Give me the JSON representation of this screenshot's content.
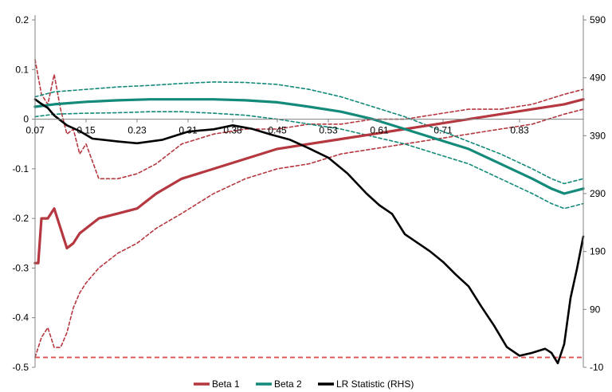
{
  "chart_data": {
    "type": "line",
    "title": "",
    "xlabel": "",
    "ylabel": "",
    "x_tick_labels": [
      "0.07",
      "0.15",
      "0.23",
      "0.31",
      "0.38",
      "0.45",
      "0.53",
      "0.61",
      "0.71",
      "0.83"
    ],
    "x_tick_positions": [
      0.07,
      0.15,
      0.23,
      0.31,
      0.38,
      0.45,
      0.53,
      0.61,
      0.71,
      0.83
    ],
    "xlim": [
      0.07,
      0.93
    ],
    "ylim_left": [
      -0.5,
      0.2
    ],
    "ylim_right": [
      -10,
      590
    ],
    "y_left_ticks": [
      0.2,
      0.1,
      0,
      -0.1,
      -0.2,
      -0.3,
      -0.4,
      -0.5
    ],
    "y_left_tick_labels": [
      "0.2",
      "0.1",
      "0",
      "-0.1",
      "-0.2",
      "-0.3",
      "-0.4",
      "-0.5"
    ],
    "y_right_ticks": [
      590,
      490,
      390,
      290,
      190,
      90,
      -10
    ],
    "y_right_tick_labels": [
      "590",
      "490",
      "390",
      "290",
      "190",
      "90",
      "-10"
    ],
    "legend_position": "bottom",
    "colors": {
      "beta1": "#b5373f",
      "beta2": "#138a7a",
      "lr": "#000000",
      "critical": "#e05050"
    },
    "series": [
      {
        "name": "Beta 1",
        "axis": "left",
        "style": "solid",
        "color": "#b5373f",
        "x": [
          0.07,
          0.075,
          0.08,
          0.09,
          0.1,
          0.11,
          0.12,
          0.13,
          0.14,
          0.15,
          0.17,
          0.2,
          0.23,
          0.26,
          0.3,
          0.35,
          0.4,
          0.45,
          0.5,
          0.55,
          0.6,
          0.65,
          0.7,
          0.75,
          0.8,
          0.85,
          0.9,
          0.93
        ],
        "y": [
          -0.29,
          -0.29,
          -0.2,
          -0.2,
          -0.18,
          -0.22,
          -0.26,
          -0.25,
          -0.23,
          -0.22,
          -0.2,
          -0.19,
          -0.18,
          -0.15,
          -0.12,
          -0.1,
          -0.08,
          -0.06,
          -0.05,
          -0.04,
          -0.03,
          -0.02,
          -0.01,
          0.0,
          0.01,
          0.02,
          0.03,
          0.04
        ]
      },
      {
        "name": "Beta 1 upper band",
        "axis": "left",
        "style": "dashed",
        "color": "#b5373f",
        "x": [
          0.07,
          0.08,
          0.09,
          0.1,
          0.11,
          0.12,
          0.13,
          0.14,
          0.15,
          0.17,
          0.2,
          0.23,
          0.26,
          0.3,
          0.35,
          0.4,
          0.45,
          0.5,
          0.55,
          0.6,
          0.65,
          0.7,
          0.75,
          0.8,
          0.85,
          0.9,
          0.93
        ],
        "y": [
          0.12,
          0.05,
          0.03,
          0.09,
          0.02,
          -0.03,
          -0.02,
          -0.07,
          -0.05,
          -0.12,
          -0.12,
          -0.11,
          -0.09,
          -0.05,
          -0.03,
          -0.02,
          -0.02,
          -0.01,
          -0.01,
          0.0,
          0.0,
          0.01,
          0.02,
          0.02,
          0.03,
          0.05,
          0.06
        ]
      },
      {
        "name": "Beta 1 lower band",
        "axis": "left",
        "style": "dashed",
        "color": "#b5373f",
        "x": [
          0.07,
          0.08,
          0.09,
          0.1,
          0.11,
          0.12,
          0.13,
          0.14,
          0.15,
          0.17,
          0.2,
          0.23,
          0.26,
          0.3,
          0.35,
          0.4,
          0.45,
          0.5,
          0.55,
          0.6,
          0.65,
          0.7,
          0.75,
          0.8,
          0.85,
          0.9,
          0.93
        ],
        "y": [
          -0.48,
          -0.44,
          -0.42,
          -0.46,
          -0.46,
          -0.43,
          -0.38,
          -0.35,
          -0.33,
          -0.3,
          -0.27,
          -0.25,
          -0.22,
          -0.19,
          -0.15,
          -0.12,
          -0.1,
          -0.09,
          -0.07,
          -0.06,
          -0.05,
          -0.04,
          -0.03,
          -0.02,
          -0.01,
          0.01,
          0.02
        ]
      },
      {
        "name": "Beta 2",
        "axis": "left",
        "style": "solid",
        "color": "#138a7a",
        "x": [
          0.07,
          0.1,
          0.15,
          0.2,
          0.25,
          0.3,
          0.35,
          0.4,
          0.45,
          0.5,
          0.55,
          0.6,
          0.65,
          0.7,
          0.75,
          0.8,
          0.85,
          0.88,
          0.9,
          0.93
        ],
        "y": [
          0.025,
          0.03,
          0.035,
          0.038,
          0.04,
          0.04,
          0.04,
          0.038,
          0.034,
          0.025,
          0.015,
          0.0,
          -0.02,
          -0.04,
          -0.06,
          -0.09,
          -0.12,
          -0.14,
          -0.15,
          -0.14
        ]
      },
      {
        "name": "Beta 2 upper band",
        "axis": "left",
        "style": "dashed",
        "color": "#138a7a",
        "x": [
          0.07,
          0.1,
          0.15,
          0.2,
          0.25,
          0.3,
          0.35,
          0.4,
          0.45,
          0.5,
          0.55,
          0.6,
          0.65,
          0.7,
          0.75,
          0.8,
          0.85,
          0.88,
          0.9,
          0.93
        ],
        "y": [
          0.045,
          0.055,
          0.06,
          0.065,
          0.068,
          0.072,
          0.075,
          0.074,
          0.07,
          0.06,
          0.045,
          0.025,
          0.005,
          -0.02,
          -0.045,
          -0.07,
          -0.1,
          -0.12,
          -0.13,
          -0.12
        ]
      },
      {
        "name": "Beta 2 lower band",
        "axis": "left",
        "style": "dashed",
        "color": "#138a7a",
        "x": [
          0.07,
          0.1,
          0.15,
          0.2,
          0.25,
          0.3,
          0.35,
          0.4,
          0.45,
          0.5,
          0.55,
          0.6,
          0.65,
          0.7,
          0.75,
          0.8,
          0.85,
          0.88,
          0.9,
          0.93
        ],
        "y": [
          0.005,
          0.01,
          0.012,
          0.013,
          0.015,
          0.015,
          0.012,
          0.008,
          0.0,
          -0.01,
          -0.02,
          -0.035,
          -0.05,
          -0.07,
          -0.09,
          -0.12,
          -0.15,
          -0.17,
          -0.18,
          -0.17
        ]
      },
      {
        "name": "LR Statistic (RHS)",
        "axis": "right",
        "style": "solid",
        "color": "#000000",
        "x": [
          0.07,
          0.08,
          0.09,
          0.1,
          0.12,
          0.14,
          0.16,
          0.2,
          0.23,
          0.27,
          0.31,
          0.35,
          0.38,
          0.41,
          0.44,
          0.47,
          0.5,
          0.53,
          0.56,
          0.59,
          0.61,
          0.63,
          0.65,
          0.67,
          0.69,
          0.71,
          0.73,
          0.75,
          0.77,
          0.79,
          0.81,
          0.83,
          0.85,
          0.87,
          0.88,
          0.89,
          0.9,
          0.91,
          0.92,
          0.93
        ],
        "y": [
          453,
          445,
          438,
          425,
          408,
          398,
          385,
          380,
          377,
          383,
          397,
          401,
          408,
          402,
          392,
          383,
          368,
          352,
          325,
          290,
          270,
          255,
          220,
          205,
          190,
          172,
          150,
          130,
          95,
          62,
          25,
          10,
          15,
          22,
          15,
          -3,
          30,
          110,
          160,
          216
        ]
      }
    ],
    "reference_line": {
      "axis": "left",
      "y": -0.48,
      "style": "dashed",
      "color": "#e05050"
    },
    "legend": [
      {
        "label": "Beta 1",
        "color": "#b5373f"
      },
      {
        "label": "Beta 2",
        "color": "#138a7a"
      },
      {
        "label": "LR Statistic (RHS)",
        "color": "#000000"
      }
    ]
  }
}
